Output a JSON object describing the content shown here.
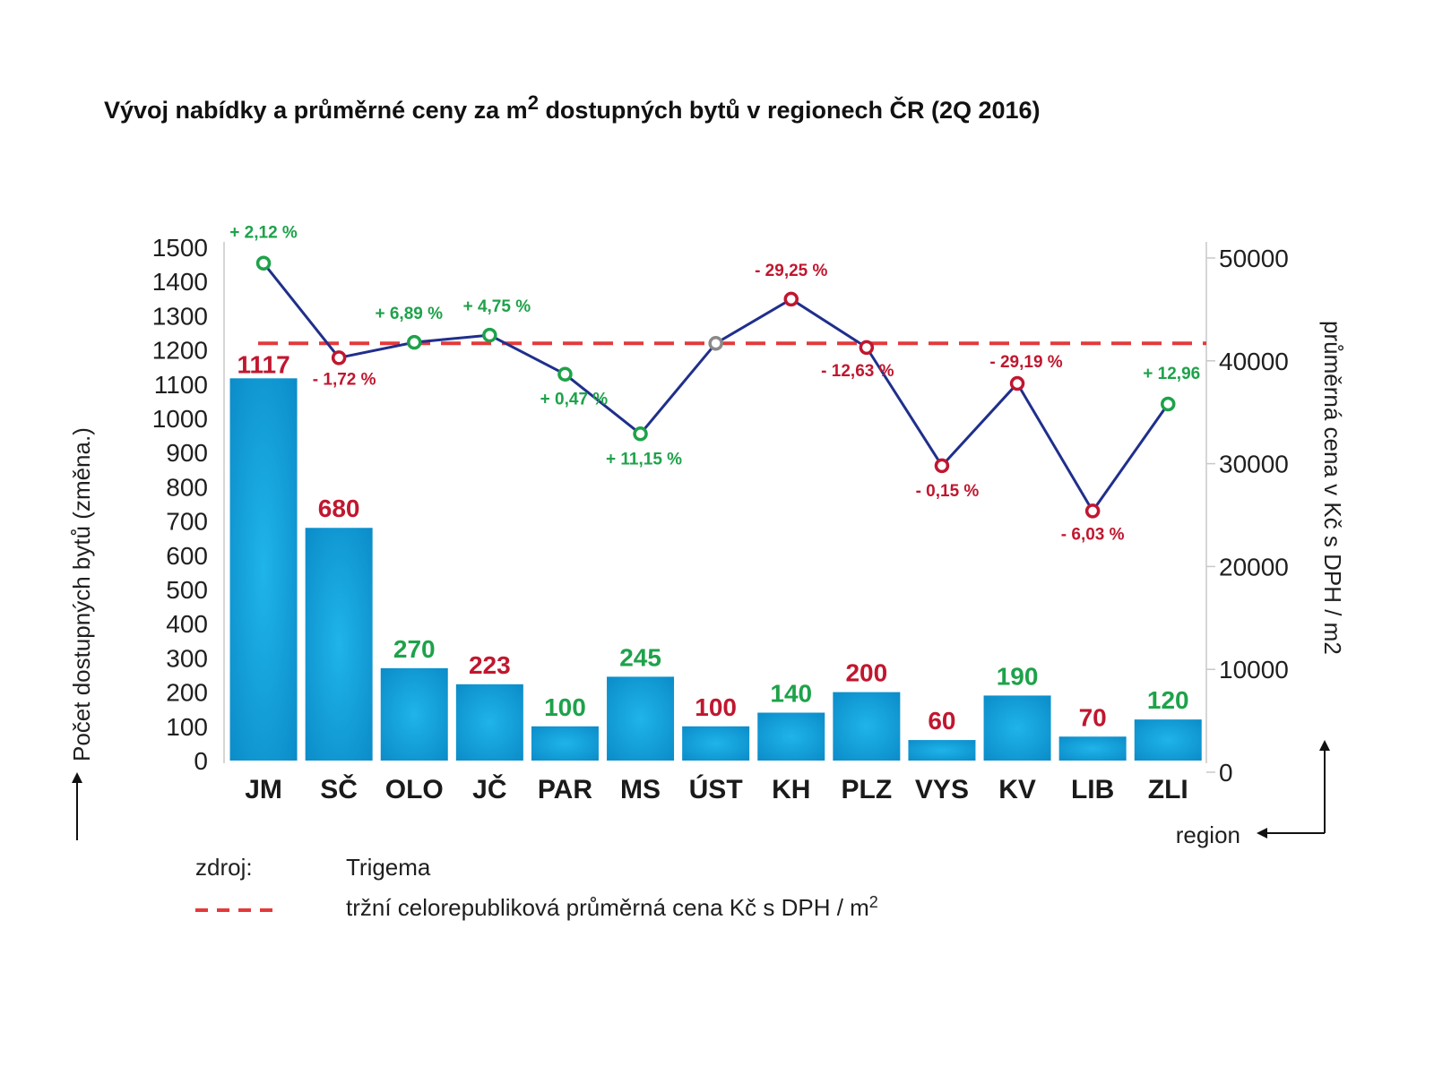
{
  "chart_data": {
    "type": "bar+line",
    "title_main": "Vývoj nabídky a průměrné ceny za m",
    "title_sup": "2",
    "title_rest": " dostupných bytů v regionech ČR (2Q 2016)",
    "categories": [
      "JM",
      "SČ",
      "OLO",
      "JČ",
      "PAR",
      "MS",
      "ÚST",
      "KH",
      "PLZ",
      "VYS",
      "KV",
      "LIB",
      "ZLI"
    ],
    "bar_series": {
      "name": "Počet dostupných bytů (změna.)",
      "values": [
        1117,
        680,
        270,
        223,
        100,
        245,
        100,
        140,
        200,
        60,
        190,
        70,
        120
      ],
      "label_status": [
        "down",
        "down",
        "up",
        "down",
        "up",
        "up",
        "down",
        "up",
        "down",
        "down",
        "up",
        "down",
        "up"
      ]
    },
    "line_series": {
      "name": "průměrná cena v Kč s DPH / m2",
      "values": [
        49500,
        40300,
        41800,
        42500,
        38700,
        32900,
        41700,
        46000,
        41300,
        29800,
        37800,
        25400,
        35800
      ],
      "change_labels": [
        "+ 2,12 %",
        "- 1,72 %",
        "+ 6,89 %",
        "+ 4,75 %",
        "+ 0,47 %",
        "+ 11,15 %",
        "",
        "- 29,25 %",
        "- 12,63 %",
        "- 0,15 %",
        "- 29,19 %",
        "- 6,03 %",
        "+ 12,96"
      ],
      "status": [
        "up",
        "down",
        "up",
        "up",
        "up",
        "up",
        "neutral",
        "down",
        "down",
        "down",
        "down",
        "down",
        "up"
      ]
    },
    "reference_line": {
      "value": 41700,
      "label": "tržní celorepubliková průměrná cena Kč s DPH / m",
      "label_sup": "2"
    },
    "y_left": {
      "label": "Počet dostupných bytů (změna.)",
      "min": 0,
      "max": 1500,
      "ticks": [
        0,
        100,
        200,
        300,
        400,
        500,
        600,
        700,
        800,
        900,
        1000,
        1100,
        1200,
        1300,
        1400,
        1500
      ]
    },
    "y_right": {
      "label": "průměrná cena v Kč s DPH / m2",
      "min": 0,
      "max": 50000,
      "ticks": [
        0,
        10000,
        20000,
        30000,
        40000,
        50000
      ]
    },
    "x_label": "region",
    "source_label": "zdroj:",
    "source_value": "Trigema",
    "colors": {
      "bar": "#0aa0dc",
      "bar_light": "#1fb4ea",
      "bar_dark": "#0b8cc8",
      "line": "#1f2f8c",
      "up": "#1ea24a",
      "down": "#c0172f",
      "neutral": "#8a8a8a",
      "reference": "#e5393a"
    }
  }
}
